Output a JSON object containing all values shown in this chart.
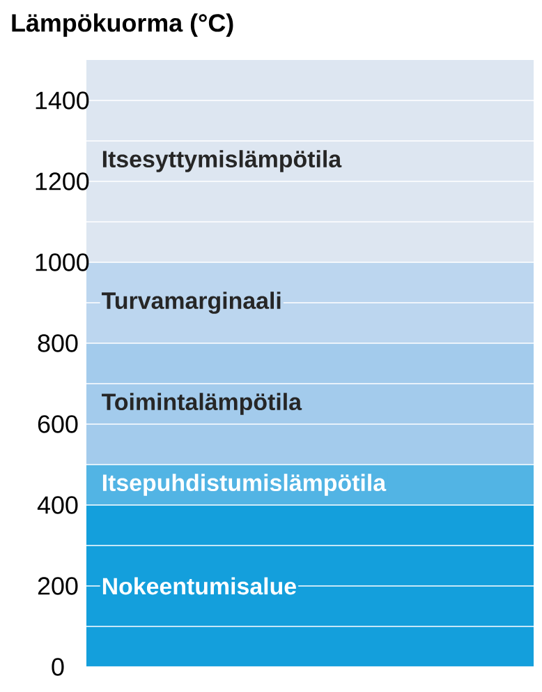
{
  "chart_data": {
    "type": "bar",
    "stacked": true,
    "title": "Lämpökuorma (°C)",
    "categories": [
      null
    ],
    "series": [
      {
        "name": "Nokeentumisalue",
        "color": "#149fdc",
        "values": [
          400
        ]
      },
      {
        "name": "Itsepuhdistumislämpötila",
        "color": "#52b4e4",
        "values": [
          100
        ]
      },
      {
        "name": "Toimintalämpötila",
        "color": "#a3cbec",
        "values": [
          300
        ]
      },
      {
        "name": "Turvamarginaali",
        "color": "#bcd6ef",
        "values": [
          200
        ]
      },
      {
        "name": "Itsesyttymislämpötila",
        "color": "#dde6f1",
        "values": [
          500
        ]
      }
    ],
    "ylim": [
      0,
      1500
    ],
    "yticks": [
      0,
      {
        "value": 100,
        "label": null
      },
      200,
      {
        "value": 300,
        "label": null
      },
      400,
      {
        "value": 500,
        "label": null
      },
      600,
      {
        "value": 700,
        "label": null
      },
      800,
      {
        "value": 900,
        "label": null
      },
      1000,
      {
        "value": 1100,
        "label": null
      },
      1200,
      {
        "value": 1300,
        "label": null
      },
      1400
    ],
    "grid": "y"
  }
}
